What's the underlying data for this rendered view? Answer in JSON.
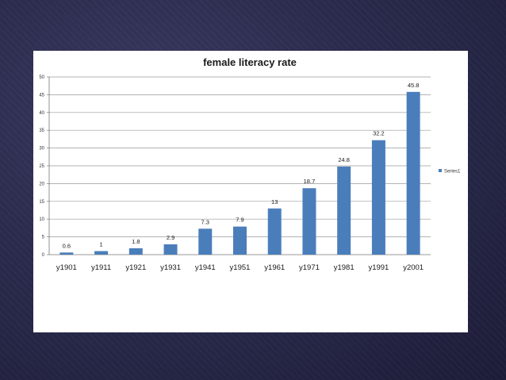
{
  "chart_data": {
    "type": "bar",
    "title": "female literacy rate",
    "xlabel": "",
    "ylabel": "",
    "categories": [
      "y1901",
      "y1911",
      "y1921",
      "y1931",
      "y1941",
      "y1951",
      "y1961",
      "y1971",
      "y1981",
      "y1991",
      "y2001"
    ],
    "series": [
      {
        "name": "Series1",
        "values": [
          0.6,
          1,
          1.8,
          2.9,
          7.3,
          7.9,
          13,
          18.7,
          24.8,
          32.2,
          45.8
        ]
      }
    ],
    "data_labels": [
      "0.6",
      "1",
      "1.8",
      "2.9",
      "7.3",
      "7.9",
      "13",
      "18.7",
      "24.8",
      "32.2",
      "45.8"
    ],
    "ylim": [
      0,
      50
    ],
    "yticks": [
      "0",
      "5",
      "10",
      "15",
      "20",
      "25",
      "30",
      "35",
      "40",
      "45",
      "50"
    ],
    "grid": true,
    "legend_position": "right",
    "bar_color": "#4a7ebb"
  }
}
